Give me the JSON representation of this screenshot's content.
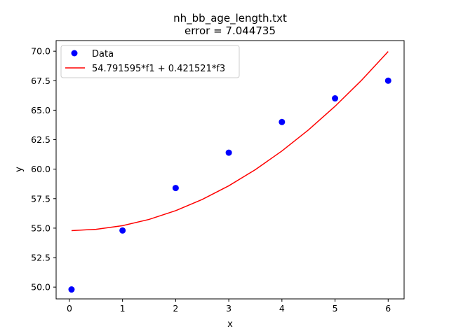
{
  "chart_data": {
    "type": "scatter",
    "title": "nh_bb_age_length.txt",
    "subtitle": "error  = 7.044735",
    "xlabel": "x",
    "ylabel": "y",
    "xlim": [
      -0.25,
      6.3
    ],
    "ylim": [
      49.0,
      70.9
    ],
    "xticks": [
      0,
      1,
      2,
      3,
      4,
      5,
      6
    ],
    "xtick_labels": [
      "0",
      "1",
      "2",
      "3",
      "4",
      "5",
      "6"
    ],
    "yticks": [
      50.0,
      52.5,
      55.0,
      57.5,
      60.0,
      62.5,
      65.0,
      67.5,
      70.0
    ],
    "ytick_labels": [
      "50.0",
      "52.5",
      "55.0",
      "57.5",
      "60.0",
      "62.5",
      "65.0",
      "67.5",
      "70.0"
    ],
    "grid": false,
    "legend_position": "top-left",
    "series": [
      {
        "name": "Data",
        "kind": "points",
        "color": "#0000ff",
        "x": [
          0.04,
          1,
          2,
          3,
          4,
          5,
          6
        ],
        "y": [
          49.8,
          54.8,
          58.4,
          61.4,
          64.0,
          66.0,
          67.5
        ]
      },
      {
        "name": "54.791595*f1 + 0.421521*f3",
        "kind": "line",
        "color": "#ff0000",
        "x": [
          0.04,
          0.5,
          1.0,
          1.5,
          2.0,
          2.5,
          3.0,
          3.5,
          4.0,
          4.5,
          5.0,
          5.5,
          6.0
        ],
        "y": [
          54.79,
          54.9,
          55.21,
          55.74,
          56.48,
          57.43,
          58.59,
          59.96,
          61.54,
          63.33,
          65.33,
          67.54,
          69.97
        ]
      }
    ]
  }
}
